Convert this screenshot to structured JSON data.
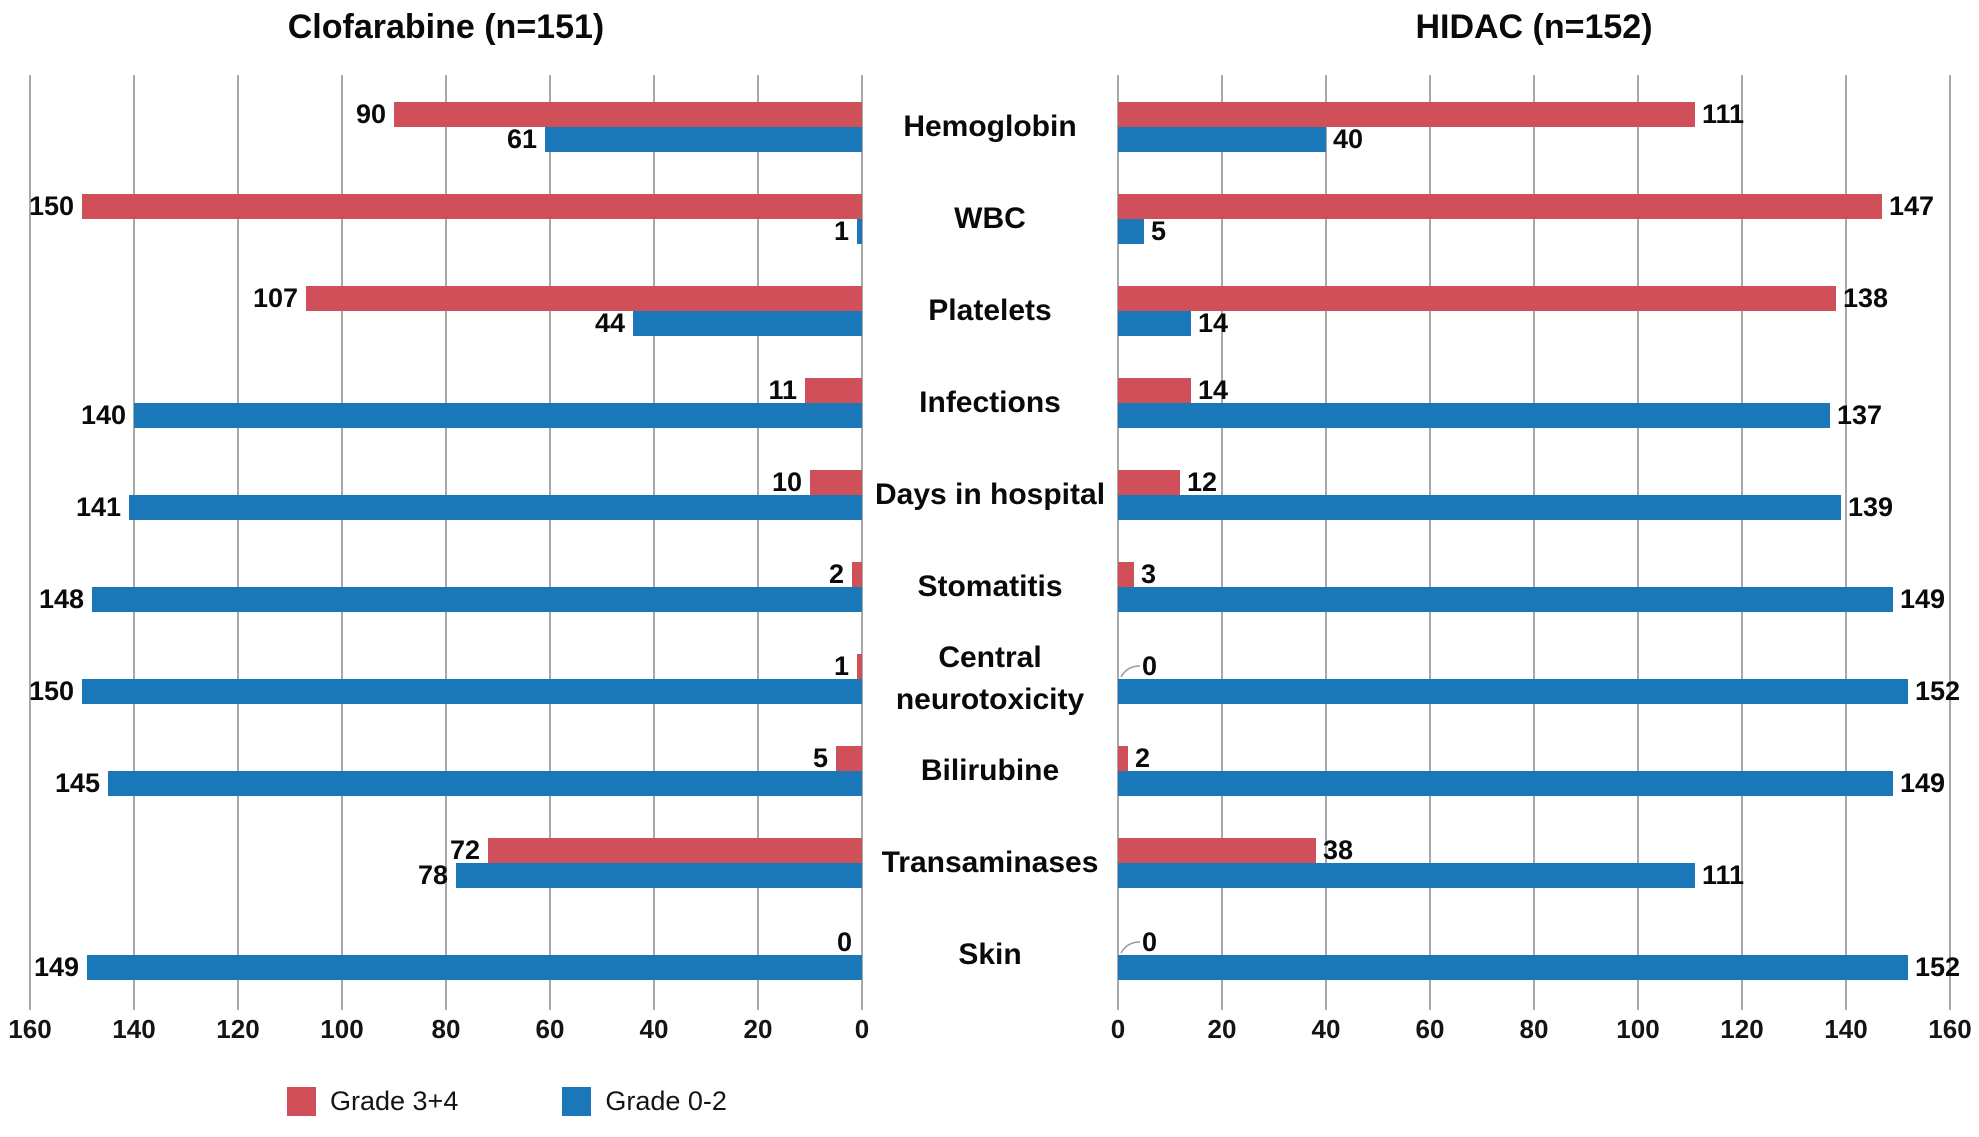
{
  "colors": {
    "grade_3_4": "#d05059",
    "grade_0_2": "#1b78b8",
    "gridline": "#a9a9a9",
    "text": "#0a0a0a",
    "leader": "#999999",
    "background": "#ffffff"
  },
  "legend": [
    {
      "label": "Grade 3+4",
      "series": "grade_3_4"
    },
    {
      "label": "Grade 0-2",
      "series": "grade_0_2"
    }
  ],
  "axis": {
    "min": 0,
    "max": 160,
    "step": 20,
    "left_ticks": [
      "160",
      "140",
      "120",
      "100",
      "80",
      "60",
      "40",
      "20",
      "0"
    ],
    "right_ticks": [
      "0",
      "20",
      "40",
      "60",
      "80",
      "100",
      "120",
      "140",
      "160"
    ]
  },
  "chart_data": {
    "type": "bar",
    "variant": "tornado-butterfly",
    "orientation": "horizontal",
    "categories": [
      "Hemoglobin",
      "WBC",
      "Platelets",
      "Infections",
      "Days in hospital",
      "Stomatitis",
      "Central neurotoxicity",
      "Bilirubine",
      "Transaminases",
      "Skin"
    ],
    "panels": [
      {
        "title": "Clofarabine (n=151)",
        "side": "left",
        "series": [
          {
            "name": "Grade 3+4",
            "color": "#d05059",
            "values": [
              90,
              150,
              107,
              11,
              10,
              2,
              1,
              5,
              72,
              0
            ]
          },
          {
            "name": "Grade 0-2",
            "color": "#1b78b8",
            "values": [
              61,
              1,
              44,
              140,
              141,
              148,
              150,
              145,
              78,
              149
            ]
          }
        ]
      },
      {
        "title": "HIDAC (n=152)",
        "side": "right",
        "series": [
          {
            "name": "Grade 3+4",
            "color": "#d05059",
            "values": [
              111,
              147,
              138,
              14,
              12,
              3,
              0,
              2,
              38,
              0
            ]
          },
          {
            "name": "Grade 0-2",
            "color": "#1b78b8",
            "values": [
              40,
              5,
              14,
              137,
              139,
              149,
              152,
              149,
              111,
              152
            ]
          }
        ]
      }
    ],
    "xlim": [
      0,
      160
    ],
    "grid": true,
    "legend_position": "bottom-left",
    "value_labels": "outside-bar-end"
  }
}
